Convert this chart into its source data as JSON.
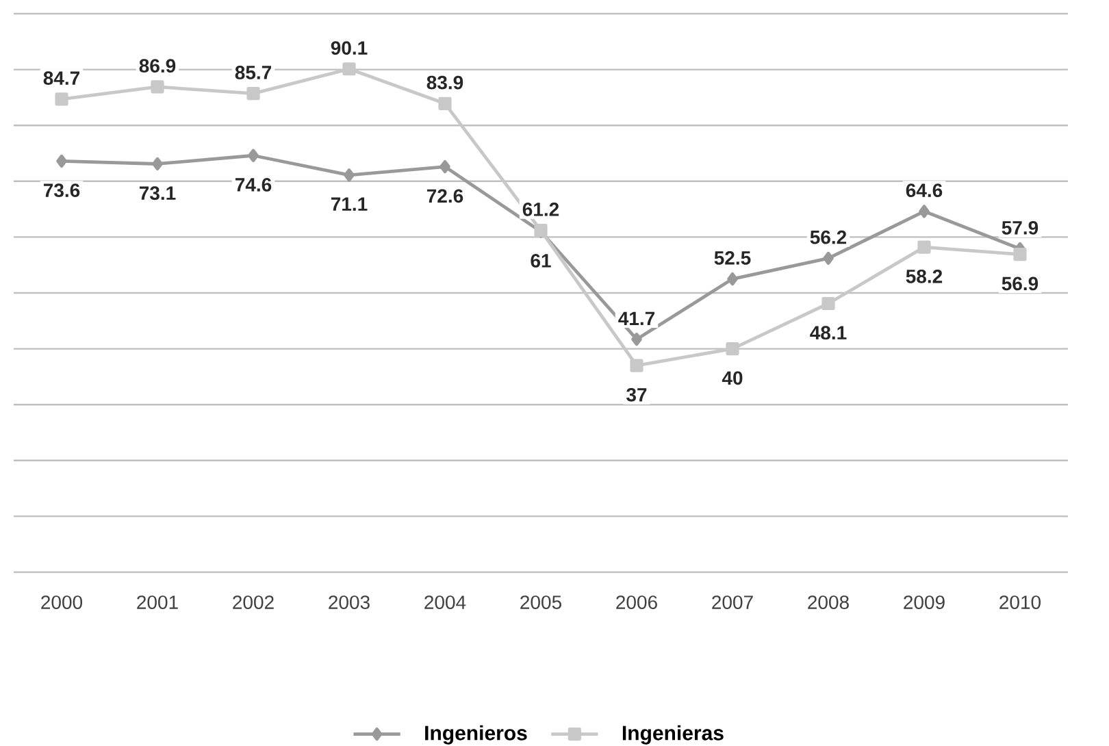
{
  "chart_data": {
    "type": "line",
    "categories": [
      "2000",
      "2001",
      "2002",
      "2003",
      "2004",
      "2005",
      "2006",
      "2007",
      "2008",
      "2009",
      "2010"
    ],
    "series": [
      {
        "name": "Ingenieros",
        "color": "#999999",
        "marker": "diamond",
        "values": [
          73.6,
          73.1,
          74.6,
          71.1,
          72.6,
          61,
          41.7,
          52.5,
          56.2,
          64.6,
          57.9
        ]
      },
      {
        "name": "Ingenieras",
        "color": "#c8c8c8",
        "marker": "square",
        "values": [
          84.7,
          86.9,
          85.7,
          90.1,
          83.9,
          61.2,
          37,
          40,
          48.1,
          58.2,
          56.9
        ]
      }
    ],
    "ylim": [
      0,
      100
    ],
    "yticks": [
      {
        "value": 0,
        "label": null
      },
      {
        "value": 10,
        "label": null
      },
      {
        "value": 20,
        "label": null
      },
      {
        "value": 30,
        "label": null
      },
      {
        "value": 40,
        "label": null
      },
      {
        "value": 50,
        "label": null
      },
      {
        "value": 60,
        "label": null
      },
      {
        "value": 70,
        "label": null
      },
      {
        "value": 80,
        "label": null
      },
      {
        "value": 90,
        "label": null
      },
      {
        "value": 100,
        "label": null
      }
    ],
    "tick_labels": "x",
    "grid": "y",
    "legend": "bottom",
    "data_labels": true,
    "line_style": "solid"
  }
}
